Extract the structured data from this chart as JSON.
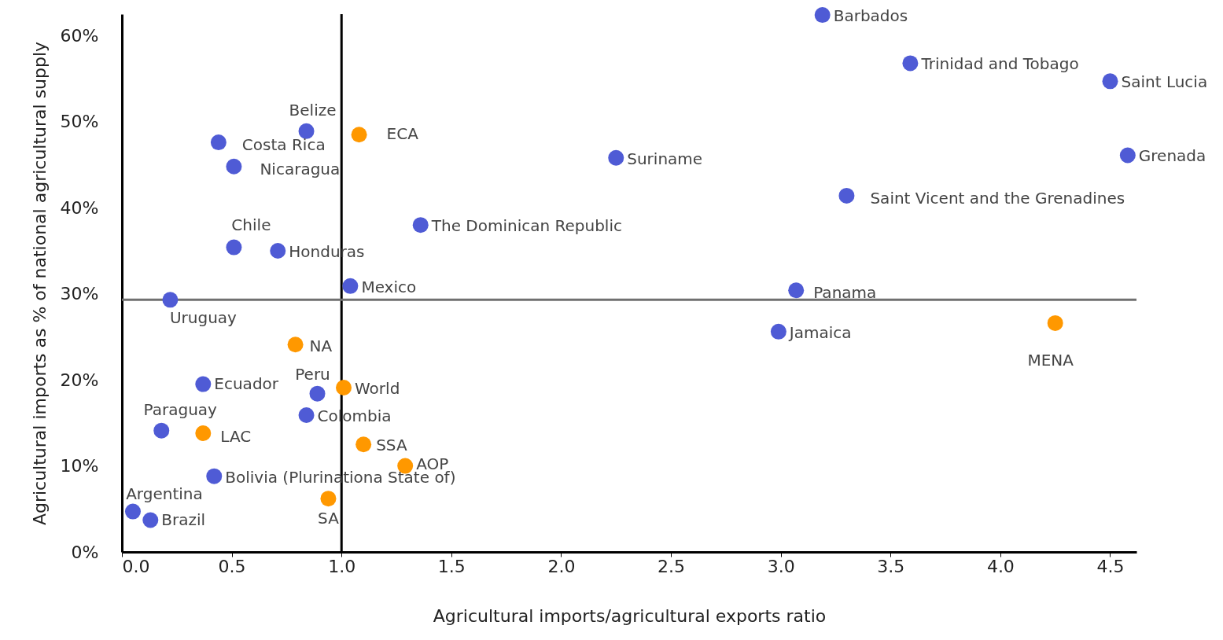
{
  "chart_data": {
    "type": "scatter",
    "xlabel": "Agricultural imports/agricultural exports ratio",
    "ylabel": "Agricultural imports as % of national agricultural supply",
    "xlim": [
      0,
      4.62
    ],
    "ylim": [
      0,
      62.5
    ],
    "xticks": [
      {
        "value": 0,
        "label": "0.0"
      },
      {
        "value": 0.5,
        "label": "0.5"
      },
      {
        "value": 1,
        "label": "1.0"
      },
      {
        "value": 1.5,
        "label": "1.5"
      },
      {
        "value": 2,
        "label": "2.0"
      },
      {
        "value": 2.5,
        "label": "2.5"
      },
      {
        "value": 3,
        "label": "3.0"
      },
      {
        "value": 3.5,
        "label": "3.5"
      },
      {
        "value": 4,
        "label": "4.0"
      },
      {
        "value": 4.5,
        "label": "4.5"
      }
    ],
    "yticks": [
      {
        "value": 0,
        "label": "0%"
      },
      {
        "value": 10,
        "label": "10%"
      },
      {
        "value": 20,
        "label": "20%"
      },
      {
        "value": 30,
        "label": "30%"
      },
      {
        "value": 40,
        "label": "40%"
      },
      {
        "value": 50,
        "label": "50%"
      },
      {
        "value": 60,
        "label": "60%"
      }
    ],
    "grid": false,
    "marker": "circle",
    "series": [
      {
        "color": "#4f5bd5",
        "x": [
          3.19,
          3.59,
          4.5,
          4.58,
          3.3,
          2.25,
          1.36,
          0.84,
          0.44,
          0.51,
          0.51,
          0.71,
          1.04,
          0.22,
          3.07,
          2.99,
          0.37,
          0.89,
          0.84,
          0.18,
          0.42,
          0.05,
          0.13
        ],
        "values": [
          62.4,
          56.8,
          54.7,
          46.1,
          41.4,
          45.8,
          38.0,
          48.9,
          47.6,
          44.8,
          35.4,
          35.0,
          30.9,
          29.3,
          30.4,
          25.6,
          19.5,
          18.4,
          15.9,
          14.1,
          8.8,
          4.7,
          3.7
        ]
      },
      {
        "color": "#ff9800",
        "x": [
          1.08,
          4.25,
          0.79,
          1.01,
          0.37,
          1.1,
          1.29,
          0.94
        ],
        "values": [
          48.5,
          26.6,
          24.1,
          19.1,
          13.8,
          12.5,
          10.0,
          6.2
        ]
      }
    ],
    "ref_lines": [
      {
        "axis": "x",
        "value": 1.0,
        "color": "#000000"
      },
      {
        "axis": "y",
        "value": 29.3,
        "color": "#707070"
      }
    ],
    "annotations": [
      {
        "text": "Barbados",
        "x": 3.19,
        "y": 62.4
      },
      {
        "text": "Trinidad and Tobago",
        "x": 3.59,
        "y": 56.8
      },
      {
        "text": "Saint Lucia",
        "x": 4.5,
        "y": 54.7
      },
      {
        "text": "Grenada",
        "x": 4.58,
        "y": 46.1
      },
      {
        "text": "Saint Vicent and the Grenadines",
        "x": 3.3,
        "y": 41.4
      },
      {
        "text": "Suriname",
        "x": 2.25,
        "y": 45.8
      },
      {
        "text": "The Dominican Republic",
        "x": 1.36,
        "y": 38.0
      },
      {
        "text": "Belize",
        "x": 0.84,
        "y": 48.9
      },
      {
        "text": "Costa Rica",
        "x": 0.44,
        "y": 47.6
      },
      {
        "text": "Nicaragua",
        "x": 0.51,
        "y": 44.8
      },
      {
        "text": "Chile",
        "x": 0.51,
        "y": 35.4
      },
      {
        "text": "Honduras",
        "x": 0.71,
        "y": 35.0
      },
      {
        "text": "Mexico",
        "x": 1.04,
        "y": 30.9
      },
      {
        "text": "Uruguay",
        "x": 0.22,
        "y": 29.3
      },
      {
        "text": "Panama",
        "x": 3.07,
        "y": 30.4
      },
      {
        "text": "Jamaica",
        "x": 2.99,
        "y": 25.6
      },
      {
        "text": "Ecuador",
        "x": 0.37,
        "y": 19.5
      },
      {
        "text": "Peru",
        "x": 0.89,
        "y": 18.4
      },
      {
        "text": "Colombia",
        "x": 0.84,
        "y": 15.9
      },
      {
        "text": "Paraguay",
        "x": 0.18,
        "y": 14.1
      },
      {
        "text": "Bolivia (Plurinationa State of)",
        "x": 0.42,
        "y": 8.8
      },
      {
        "text": "Argentina",
        "x": 0.05,
        "y": 4.7
      },
      {
        "text": "Brazil",
        "x": 0.13,
        "y": 3.7
      },
      {
        "text": "ECA",
        "x": 1.08,
        "y": 48.5
      },
      {
        "text": "MENA",
        "x": 4.25,
        "y": 26.6
      },
      {
        "text": "NA",
        "x": 0.79,
        "y": 24.1
      },
      {
        "text": "World",
        "x": 1.01,
        "y": 19.1
      },
      {
        "text": "LAC",
        "x": 0.37,
        "y": 13.8
      },
      {
        "text": "SSA",
        "x": 1.1,
        "y": 12.5
      },
      {
        "text": "AOP",
        "x": 1.29,
        "y": 10.0
      },
      {
        "text": "SA",
        "x": 0.94,
        "y": 6.2
      }
    ]
  }
}
